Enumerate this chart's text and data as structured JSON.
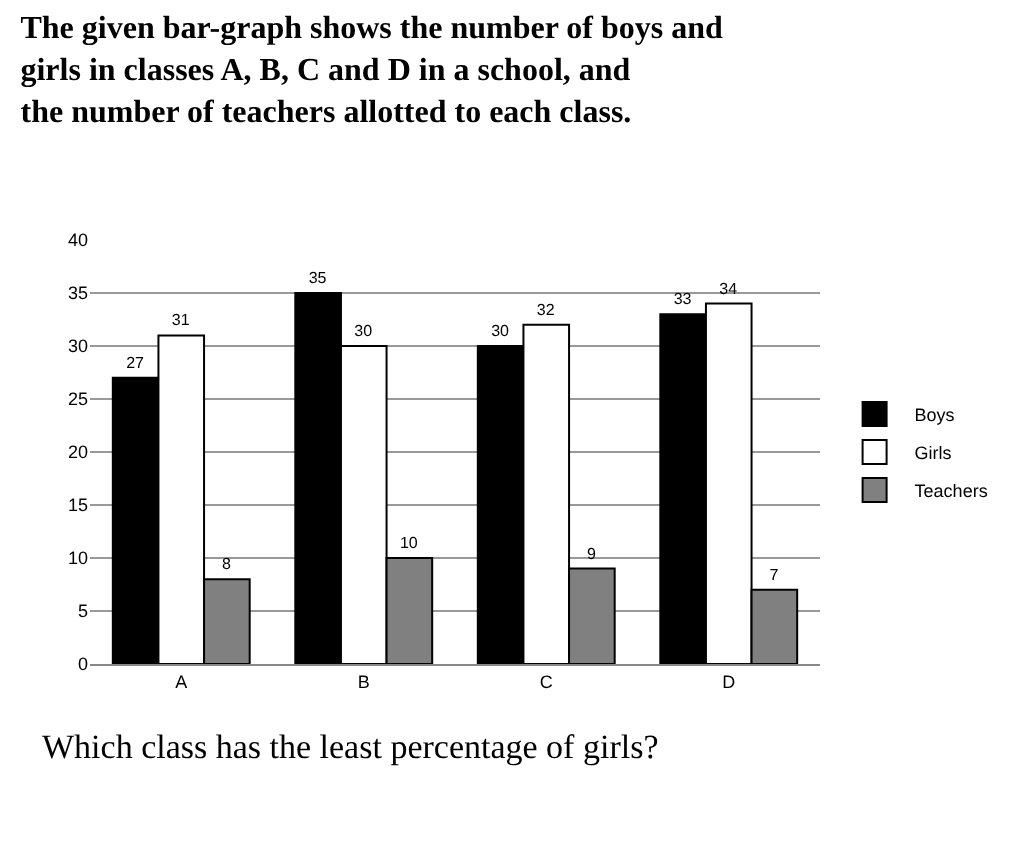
{
  "chart_data": {
    "type": "bar",
    "title": "The given bar-graph shows the number of boys and girls in classes A, B, C and D in a school, and the number of teachers allotted to each class.",
    "categories": [
      "A",
      "B",
      "C",
      "D"
    ],
    "series": [
      {
        "name": "Boys",
        "color": "#000000",
        "values": [
          27,
          35,
          30,
          33
        ]
      },
      {
        "name": "Girls",
        "color": "#ffffff",
        "values": [
          31,
          30,
          32,
          34
        ]
      },
      {
        "name": "Teachers",
        "color": "#808080",
        "values": [
          8,
          10,
          9,
          7
        ]
      }
    ],
    "ylim": [
      0,
      40
    ],
    "yticks": [
      0,
      5,
      10,
      15,
      20,
      25,
      30,
      35,
      40
    ],
    "grid": "y",
    "legend": "right",
    "data_labels": true,
    "annotations": [
      "Which class has the least percentage of girls?"
    ]
  }
}
